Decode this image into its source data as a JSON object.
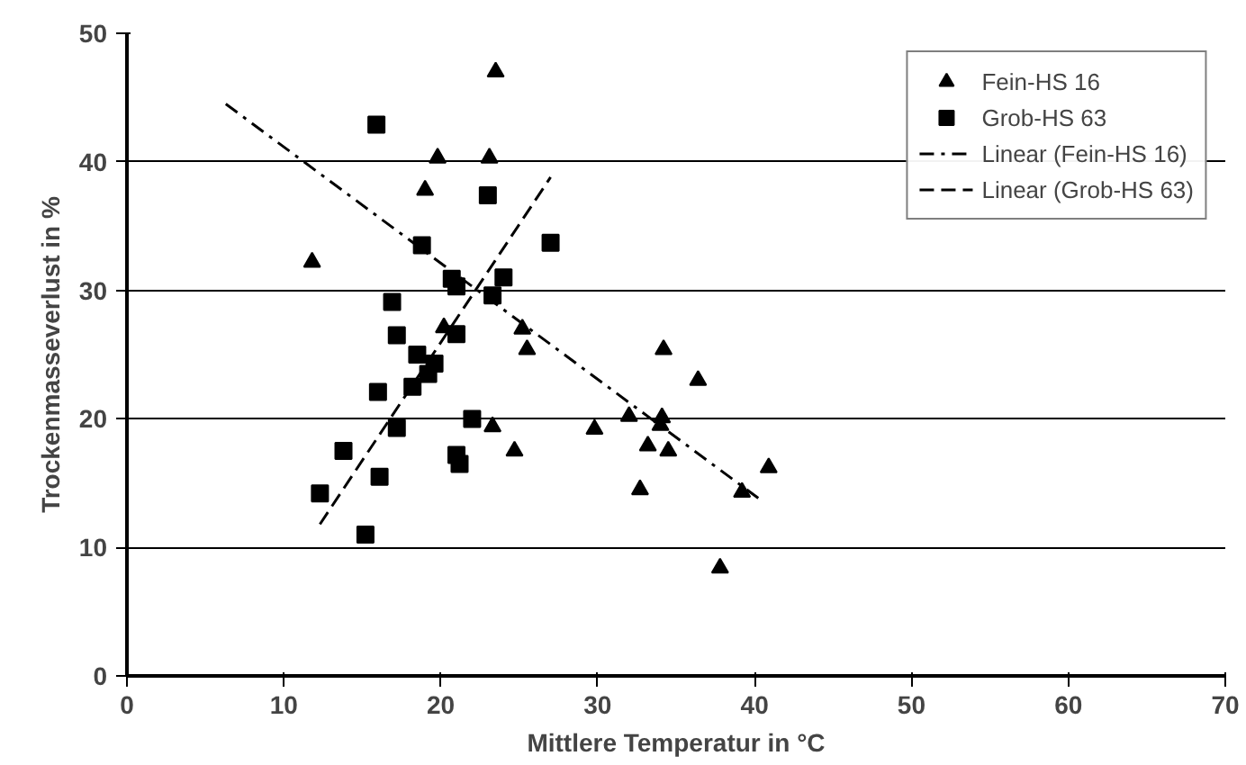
{
  "chart_data": {
    "type": "scatter",
    "xlabel": "Mittlere Temperatur in °C",
    "ylabel": "Trockenmasseverlust in %",
    "xlim": [
      0,
      70
    ],
    "xticks": [
      0,
      10,
      20,
      30,
      40,
      50,
      60,
      70
    ],
    "ylim": [
      0,
      50
    ],
    "yticks": [
      0,
      10,
      20,
      30,
      40,
      50
    ],
    "grid": "y",
    "legend": "top right",
    "series": [
      {
        "name": "Fein-HS 16",
        "color": "#000000",
        "marker": "triangle",
        "x": [
          11.8,
          19,
          19.8,
          23.1,
          23.5,
          20.2,
          25.2,
          25.5,
          23.3,
          24.7,
          29.8,
          32,
          32.7,
          33.2,
          34,
          34.1,
          34.2,
          34.5,
          36.4,
          37.8,
          39.2,
          40.9
        ],
        "values": [
          32.2,
          37.8,
          40.3,
          40.3,
          47,
          27.1,
          27,
          25.4,
          19.4,
          17.5,
          19.2,
          20.2,
          14.5,
          17.9,
          19.5,
          20.1,
          25.4,
          17.5,
          23,
          8.4,
          14.3,
          16.2
        ]
      },
      {
        "name": "Grob-HS 63",
        "color": "#000000",
        "marker": "square",
        "x": [
          15.9,
          18.8,
          23,
          27,
          24,
          20.7,
          21,
          23.3,
          16.9,
          17.2,
          21,
          18.5,
          19.6,
          18.2,
          19.2,
          16,
          17.2,
          22,
          13.8,
          21,
          21.2,
          16.1,
          12.3,
          15.2
        ],
        "values": [
          42.9,
          33.5,
          37.4,
          33.7,
          31,
          30.9,
          30.3,
          29.6,
          29.1,
          26.5,
          26.6,
          25,
          24.3,
          22.5,
          23.5,
          22.1,
          19.3,
          20,
          17.5,
          17.2,
          16.5,
          15.5,
          14.2,
          11
        ]
      },
      {
        "name": "Linear (Fein-HS 16)",
        "type": "line",
        "color": "#000000",
        "line_style": "dashdot",
        "x": [
          6.3,
          40.6
        ],
        "values": [
          44.5,
          13.5
        ]
      },
      {
        "name": "Linear (Grob-HS 63)",
        "type": "line",
        "color": "#000000",
        "line_style": "dashed",
        "x": [
          12.3,
          27
        ],
        "values": [
          11.8,
          38.8
        ]
      }
    ]
  }
}
